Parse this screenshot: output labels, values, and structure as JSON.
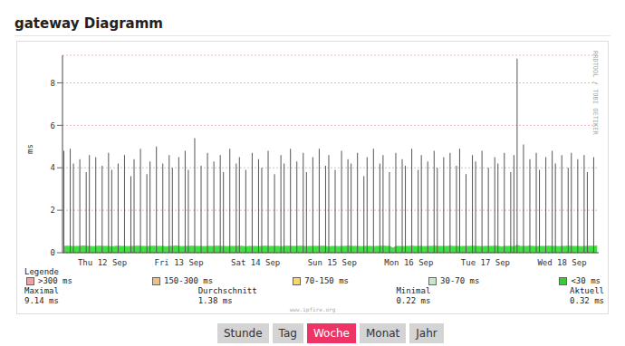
{
  "chart_data": {
    "type": "line",
    "title": "gateway Diagramm",
    "y_label": "ms",
    "side_text": "RRDTOOL / TOBI OETIKER",
    "credit": "www.ipfire.org",
    "legend_title": "Legende",
    "legend_items": [
      {
        "name": ">300 ms",
        "color": "#f4a0a0"
      },
      {
        "name": "150-300 ms",
        "color": "#f0c080"
      },
      {
        "name": "70-150 ms",
        "color": "#f5d76e"
      },
      {
        "name": "30-70 ms",
        "color": "#c8e6c8"
      },
      {
        "name": "<30 ms",
        "color": "#33cc33"
      }
    ],
    "stats": [
      {
        "label": "Maximal",
        "value": 9.14,
        "unit": "ms"
      },
      {
        "label": "Durchschnitt",
        "value": 1.38,
        "unit": "ms"
      },
      {
        "label": "Minimal",
        "value": 0.22,
        "unit": "ms"
      },
      {
        "label": "Aktuell",
        "value": 0.32,
        "unit": "ms"
      }
    ],
    "buttons": [
      "Stunde",
      "Tag",
      "Woche",
      "Monat",
      "Jahr"
    ],
    "active_button": "Woche",
    "ylim": [
      0,
      9.3
    ],
    "yticks": [
      0,
      2,
      4,
      6,
      8
    ],
    "grid": true,
    "categories": [
      null,
      null,
      null,
      null,
      null,
      null,
      null,
      null,
      null,
      null,
      null,
      null,
      "Thu 12 Sep",
      null,
      null,
      null,
      null,
      null,
      null,
      null,
      null,
      null,
      null,
      null,
      null,
      null,
      null,
      null,
      null,
      null,
      null,
      null,
      null,
      null,
      null,
      null,
      "Fri 13 Sep",
      null,
      null,
      null,
      null,
      null,
      null,
      null,
      null,
      null,
      null,
      null,
      null,
      null,
      null,
      null,
      null,
      null,
      null,
      null,
      null,
      null,
      null,
      null,
      "Sat 14 Sep",
      null,
      null,
      null,
      null,
      null,
      null,
      null,
      null,
      null,
      null,
      null,
      null,
      null,
      null,
      null,
      null,
      null,
      null,
      null,
      null,
      null,
      null,
      null,
      "Sun 15 Sep",
      null,
      null,
      null,
      null,
      null,
      null,
      null,
      null,
      null,
      null,
      null,
      null,
      null,
      null,
      null,
      null,
      null,
      null,
      null,
      null,
      null,
      null,
      null,
      "Mon 16 Sep",
      null,
      null,
      null,
      null,
      null,
      null,
      null,
      null,
      null,
      null,
      null,
      null,
      null,
      null,
      null,
      null,
      null,
      null,
      null,
      null,
      null,
      null,
      null,
      "Tue 17 Sep",
      null,
      null,
      null,
      null,
      null,
      null,
      null,
      null,
      null,
      null,
      null,
      null,
      null,
      null,
      null,
      null,
      null,
      null,
      null,
      null,
      null,
      null,
      null,
      "Wed 18 Sep",
      null,
      null,
      null,
      null,
      null,
      null,
      null,
      null,
      null,
      null,
      null
    ],
    "series": [
      {
        "type": "bar",
        "color": "#555555",
        "values": [
          4.8,
          null,
          4.9,
          4.2,
          null,
          4.4,
          null,
          3.8,
          4.6,
          null,
          4.5,
          null,
          4.1,
          null,
          4.7,
          3.9,
          null,
          4.2,
          null,
          4.6,
          null,
          3.6,
          4.4,
          null,
          4.9,
          null,
          3.7,
          4.3,
          null,
          5.0,
          null,
          4.2,
          null,
          4.6,
          4.0,
          null,
          4.5,
          null,
          4.8,
          3.9,
          null,
          5.4,
          null,
          4.1,
          null,
          4.7,
          null,
          4.3,
          null,
          4.6,
          3.8,
          null,
          4.9,
          null,
          4.2,
          4.5,
          null,
          3.9,
          null,
          4.7,
          null,
          4.4,
          4.0,
          null,
          4.8,
          null,
          3.7,
          null,
          4.6,
          4.2,
          null,
          4.9,
          null,
          4.3,
          null,
          4.7,
          3.8,
          null,
          4.5,
          null,
          4.9,
          null,
          4.1,
          4.6,
          null,
          3.9,
          null,
          4.8,
          null,
          4.4,
          4.2,
          null,
          4.7,
          null,
          3.6,
          4.5,
          null,
          4.9,
          null,
          4.2,
          4.6,
          null,
          3.8,
          null,
          4.7,
          null,
          4.4,
          4.1,
          null,
          4.9,
          null,
          3.9,
          4.6,
          null,
          4.3,
          null,
          4.8,
          4.0,
          null,
          4.5,
          null,
          4.7,
          null,
          4.1,
          4.9,
          null,
          3.7,
          null,
          4.6,
          4.3,
          null,
          4.8,
          null,
          4.0,
          null,
          4.5,
          4.2,
          null,
          4.7,
          null,
          3.8,
          4.6,
          9.14,
          null,
          5.1,
          null,
          4.4,
          null,
          4.7,
          3.9,
          null,
          4.5,
          null,
          4.8,
          4.2,
          null,
          4.6,
          null,
          4.0,
          4.7,
          null,
          4.4,
          null,
          4.6,
          3.8,
          null,
          4.5,
          null
        ]
      },
      {
        "type": "area",
        "name": "<30 ms",
        "color": "#44dd44",
        "values": [
          0.3,
          0.31,
          0.3,
          0.29,
          0.3,
          0.3,
          0.32,
          0.3,
          0.3,
          0.29,
          0.3,
          0.31,
          0.3,
          0.3,
          0.3,
          0.28,
          0.3,
          0.31,
          0.3,
          0.3,
          0.29,
          0.3,
          0.3,
          0.31,
          0.3,
          0.3,
          0.29,
          0.3,
          0.31,
          0.3,
          0.3,
          0.3,
          0.28,
          0.3,
          0.3,
          0.32,
          0.3,
          0.29,
          0.3,
          0.3,
          0.31,
          0.3,
          0.3,
          0.3,
          0.29,
          0.3,
          0.3,
          0.3,
          0.31,
          0.3,
          0.3,
          0.29,
          0.3,
          0.3,
          0.3,
          0.31,
          0.3,
          0.28,
          0.3,
          0.3,
          0.3,
          0.29,
          0.3,
          0.31,
          0.3,
          0.3,
          0.3,
          0.3,
          0.29,
          0.3,
          0.31,
          0.3,
          0.3,
          0.3,
          0.31,
          0.3,
          0.29,
          0.3,
          0.3,
          0.3,
          0.3,
          0.31,
          0.3,
          0.28,
          0.3,
          0.3,
          0.29,
          0.3,
          0.3,
          0.31,
          0.3,
          0.3,
          0.3,
          0.29,
          0.3,
          0.3,
          0.3,
          0.29,
          0.3,
          0.3,
          0.31,
          0.3,
          0.3,
          0.22,
          0.3,
          0.3,
          0.29,
          0.3,
          0.3,
          0.31,
          0.3,
          0.3,
          0.3,
          0.29,
          0.3,
          0.3,
          0.31,
          0.3,
          0.3,
          0.3,
          0.3,
          0.31,
          0.3,
          0.3,
          0.29,
          0.3,
          0.3,
          0.3,
          0.31,
          0.3,
          0.3,
          0.29,
          0.3,
          0.3,
          0.3,
          0.31,
          0.3,
          0.28,
          0.3,
          0.3,
          0.3,
          0.29,
          0.35,
          0.3,
          0.3,
          0.3,
          0.31,
          0.3,
          0.29,
          0.3,
          0.3,
          0.3,
          0.31,
          0.3,
          0.3,
          0.29,
          0.3,
          0.3,
          0.31,
          0.3,
          0.3,
          0.3,
          0.29,
          0.3,
          0.3,
          0.31,
          0.3,
          0.32
        ]
      }
    ]
  }
}
